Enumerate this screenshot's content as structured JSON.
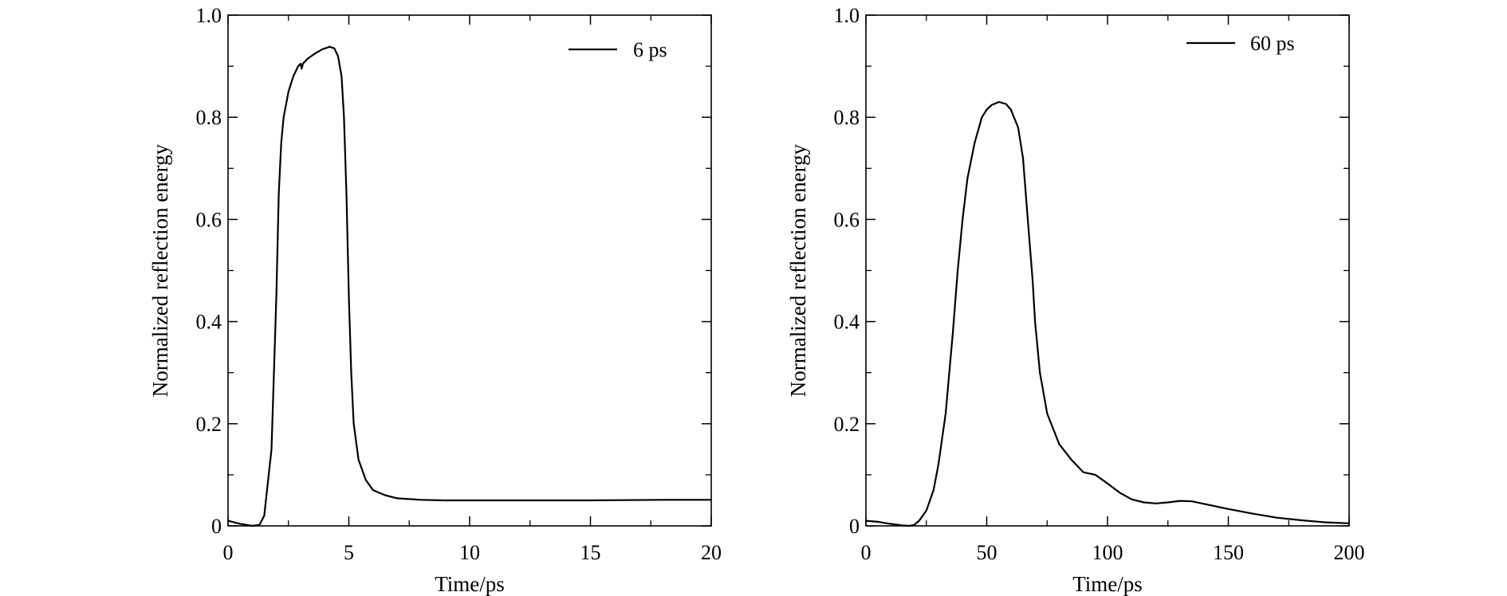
{
  "figure": {
    "line_color": "#000000",
    "background": "#ffffff"
  },
  "chart_data": [
    {
      "type": "line",
      "xlabel": "Time/ps",
      "ylabel": "Normalized reflection energy",
      "xlim": [
        0,
        20
      ],
      "ylim": [
        0,
        1.0
      ],
      "x_ticks": [
        0,
        5,
        10,
        15,
        20
      ],
      "x_tick_labels": [
        "0",
        "5",
        "10",
        "15",
        "20"
      ],
      "y_ticks": [
        0,
        0.2,
        0.4,
        0.6,
        0.8,
        1.0
      ],
      "y_tick_labels": [
        "0",
        "0.2",
        "0.4",
        "0.6",
        "0.8",
        "1.0"
      ],
      "grid": false,
      "legend_position": "top-right",
      "series": [
        {
          "name": "6 ps",
          "x": [
            0,
            0.5,
            1.0,
            1.3,
            1.5,
            1.8,
            2.0,
            2.1,
            2.2,
            2.3,
            2.5,
            2.7,
            2.9,
            3.0,
            3.05,
            3.1,
            3.3,
            3.6,
            3.9,
            4.2,
            4.4,
            4.55,
            4.7,
            4.8,
            4.9,
            5.0,
            5.1,
            5.2,
            5.4,
            5.7,
            6.0,
            6.5,
            7.0,
            8.0,
            9.0,
            10,
            12,
            15,
            18,
            20
          ],
          "y": [
            0.01,
            0.004,
            0.0,
            0.002,
            0.02,
            0.15,
            0.45,
            0.65,
            0.75,
            0.8,
            0.85,
            0.88,
            0.9,
            0.905,
            0.895,
            0.905,
            0.915,
            0.925,
            0.933,
            0.938,
            0.935,
            0.92,
            0.88,
            0.8,
            0.65,
            0.45,
            0.3,
            0.2,
            0.13,
            0.09,
            0.07,
            0.06,
            0.054,
            0.051,
            0.05,
            0.05,
            0.05,
            0.05,
            0.051,
            0.051
          ]
        }
      ]
    },
    {
      "type": "line",
      "xlabel": "Time/ps",
      "ylabel": "Normalized reflection energy",
      "xlim": [
        0,
        200
      ],
      "ylim": [
        0,
        1.0
      ],
      "x_ticks": [
        0,
        50,
        100,
        150,
        200
      ],
      "x_tick_labels": [
        "0",
        "50",
        "100",
        "150",
        "200"
      ],
      "y_ticks": [
        0,
        0.2,
        0.4,
        0.6,
        0.8,
        1.0
      ],
      "y_tick_labels": [
        "0",
        "0.2",
        "0.4",
        "0.6",
        "0.8",
        "1.0"
      ],
      "grid": false,
      "legend_position": "top-right",
      "series": [
        {
          "name": "60 ps",
          "x": [
            0,
            5,
            10,
            15,
            18,
            20,
            22,
            25,
            28,
            30,
            33,
            36,
            38,
            40,
            42,
            45,
            48,
            50,
            52,
            55,
            58,
            60,
            63,
            65,
            67,
            69,
            70,
            72,
            75,
            80,
            85,
            90,
            95,
            100,
            105,
            110,
            115,
            120,
            125,
            130,
            135,
            140,
            150,
            160,
            170,
            180,
            190,
            200
          ],
          "y": [
            0.01,
            0.008,
            0.004,
            0.001,
            0.0,
            0.002,
            0.01,
            0.03,
            0.07,
            0.12,
            0.22,
            0.38,
            0.5,
            0.6,
            0.68,
            0.75,
            0.8,
            0.815,
            0.824,
            0.83,
            0.826,
            0.815,
            0.78,
            0.72,
            0.6,
            0.48,
            0.4,
            0.3,
            0.22,
            0.16,
            0.13,
            0.105,
            0.1,
            0.083,
            0.065,
            0.052,
            0.046,
            0.044,
            0.046,
            0.049,
            0.048,
            0.043,
            0.033,
            0.024,
            0.016,
            0.011,
            0.007,
            0.005
          ]
        }
      ]
    }
  ]
}
